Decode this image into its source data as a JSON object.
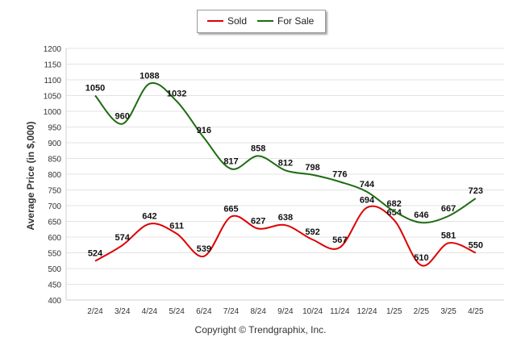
{
  "chart_data": {
    "type": "line",
    "categories": [
      "2/24",
      "3/24",
      "4/24",
      "5/24",
      "6/24",
      "7/24",
      "8/24",
      "9/24",
      "10/24",
      "11/24",
      "12/24",
      "1/25",
      "2/25",
      "3/25",
      "4/25"
    ],
    "series": [
      {
        "name": "Sold",
        "color": "#dd0000",
        "values": [
          524,
          574,
          642,
          611,
          539,
          665,
          627,
          638,
          592,
          567,
          694,
          654,
          510,
          581,
          550
        ]
      },
      {
        "name": "For Sale",
        "color": "#1e6b12",
        "values": [
          1050,
          960,
          1088,
          1032,
          916,
          817,
          858,
          812,
          798,
          776,
          744,
          682,
          646,
          667,
          723
        ]
      }
    ],
    "ylabel": "Average Price (in $,000)",
    "ylim": [
      400,
      1200
    ],
    "yticks": [
      400,
      450,
      500,
      550,
      600,
      650,
      700,
      750,
      800,
      850,
      900,
      950,
      1000,
      1050,
      1100,
      1150,
      1200
    ],
    "grid": true,
    "legend_position": "top-center",
    "footer": "Copyright © Trendgraphix, Inc."
  }
}
